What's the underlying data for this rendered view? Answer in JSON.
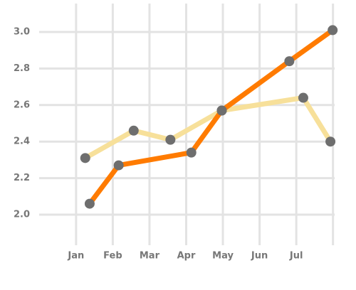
{
  "chart_data": {
    "type": "line",
    "x_series_note_free": null,
    "series": [
      {
        "color": "#f7e09a",
        "x": [
          1.25,
          2.57,
          3.57,
          4.97,
          7.19,
          7.93
        ],
        "values": [
          2.31,
          2.46,
          2.41,
          2.57,
          2.64,
          2.4
        ]
      },
      {
        "color": "#ff7b00",
        "x": [
          1.37,
          2.16,
          4.14,
          4.97,
          6.81,
          7.99
        ],
        "values": [
          2.06,
          2.27,
          2.34,
          2.57,
          2.84,
          3.01
        ]
      }
    ],
    "marker_color": "#6e6e6e",
    "xlim": [
      0,
      8
    ],
    "xticks": [
      {
        "value": 1,
        "label": "Jan"
      },
      {
        "value": 2,
        "label": "Feb"
      },
      {
        "value": 3,
        "label": "Mar"
      },
      {
        "value": 4,
        "label": "Apr"
      },
      {
        "value": 5,
        "label": "May"
      },
      {
        "value": 6,
        "label": "Jun"
      },
      {
        "value": 7,
        "label": "Jul"
      },
      {
        "value": 8,
        "label": ""
      }
    ],
    "ylim": [
      1.8,
      3.2
    ],
    "yticks": [
      {
        "value": 2,
        "label": "2.0"
      },
      2.2,
      2.4,
      2.6,
      2.8,
      {
        "value": 3,
        "label": "3.0"
      }
    ],
    "grid": true
  }
}
